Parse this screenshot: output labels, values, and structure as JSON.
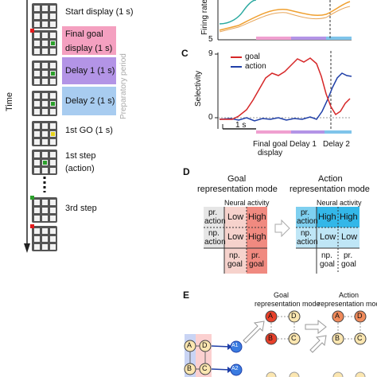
{
  "timeline": {
    "time_label": "Time",
    "steps": [
      {
        "label": "Start display (1 s)"
      },
      {
        "label": "Final goal display (1 s)"
      },
      {
        "label": "Delay 1 (1 s)"
      },
      {
        "label": "Delay 2 (1 s)"
      },
      {
        "label": "1st GO (1 s)"
      },
      {
        "label": "1st step (action)"
      },
      {
        "label": "3rd step"
      }
    ],
    "final_goal_line1": "Final goal",
    "final_goal_line2": "display (1 s)",
    "step1_line1": "1st step",
    "step1_line2": "(action)",
    "preparatory_label": "Preparatory period",
    "colors": {
      "final_goal": "#f4a0c0",
      "delay1": "#b394e6",
      "delay2": "#a8ccf0"
    }
  },
  "panel_b": {
    "ylabel": "Firing rate",
    "ytick_bottom": "5"
  },
  "panel_c": {
    "letter": "C",
    "ylabel": "Selectivity",
    "ytick_top": "9",
    "ytick_zero": "0",
    "scale_label": "1 s",
    "legend": [
      {
        "name": "goal",
        "color": "#d62728"
      },
      {
        "name": "action",
        "color": "#1f3fa8"
      }
    ],
    "x_labels": {
      "final_goal_1": "Final goal",
      "final_goal_2": "display",
      "delay1": "Delay 1",
      "delay2": "Delay 2"
    }
  },
  "panel_d": {
    "letter": "D",
    "goal_title_1": "Goal",
    "goal_title_2": "representation mode",
    "action_title_1": "Action",
    "action_title_2": "representation mode",
    "neural_activity": "Neural activity",
    "goal_table": {
      "row1_label_1": "pr.",
      "row1_label_2": "action",
      "row2_label_1": "np.",
      "row2_label_2": "action",
      "cells": [
        "Low",
        "High",
        "Low",
        "High"
      ],
      "col1_1": "np.",
      "col1_2": "goal",
      "col2_1": "pr.",
      "col2_2": "goal"
    },
    "action_table": {
      "row1_label_1": "pr.",
      "row1_label_2": "action",
      "row2_label_1": "np.",
      "row2_label_2": "action",
      "cells": [
        "High",
        "High",
        "Low",
        "Low"
      ],
      "col1_1": "np.",
      "col1_2": "goal",
      "col2_1": "pr.",
      "col2_2": "goal"
    }
  },
  "panel_e": {
    "letter": "E",
    "goal_mode_1": "Goal",
    "goal_mode_2": "representation mode",
    "action_mode_1": "Action",
    "action_mode_2": "representation mode",
    "nodes": {
      "a": "A",
      "b": "B",
      "c": "C",
      "d": "D",
      "a1": "A1",
      "a2": "A2"
    }
  }
}
